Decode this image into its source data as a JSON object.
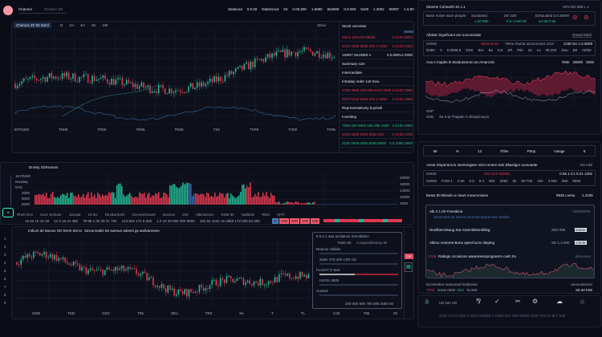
{
  "header": {
    "title": "Channel",
    "subtitle": "Position ZN",
    "tickers": [
      "Stakeout",
      "0.0.00",
      "DataScout",
      "63",
      "0.05.500",
      "1.5990",
      "8x6080",
      "0.0.060",
      "5x00",
      "1.300s",
      "00097",
      "1.0.80"
    ]
  },
  "main_chart": {
    "title": "Chemos Zh 92 Ssml",
    "tabs": [
      "D",
      "1H",
      "4H",
      "1D",
      "1W"
    ],
    "label": "Shlox",
    "x_labels": [
      "INTO200",
      "TN08",
      "TR00",
      "TR05",
      "TN05",
      "TX2",
      "TXP6",
      "TX00",
      "TX05"
    ],
    "y_labels": [
      "33",
      "32",
      "31",
      "30",
      "29",
      "28",
      "27",
      "26",
      "25",
      "24"
    ]
  },
  "order_list": {
    "title": "Stock overview",
    "rows": [
      {
        "text": "Mono 20XL50 bbbbb",
        "val": "0.0120.0800",
        "color": "red"
      },
      {
        "text": "2440 4460 8830 282 0-1250",
        "val": "0.0122.0450",
        "color": "red"
      },
      {
        "text": "1S0NT 8SUN8S s",
        "val": "0.0.00RL2 0000",
        "color": "w"
      },
      {
        "text": "Summary size",
        "val": "",
        "color": "w"
      },
      {
        "text": "Intermediate",
        "val": "",
        "color": "w"
      },
      {
        "text": "Intraday order 1x0 Ineu",
        "val": "",
        "color": "w"
      },
      {
        "text": "1780 3990 190 828 8100 2000",
        "val": "0.0103 2990",
        "color": "red"
      },
      {
        "text": "3570 8430 5850 200 0-2850",
        "val": "0.0102 2660",
        "color": "red"
      },
      {
        "text": "Representatively buy/sell",
        "val": "",
        "color": "w"
      },
      {
        "text": "Investing",
        "val": "",
        "color": "w"
      },
      {
        "text": "7050 330 5900 640 285 2100",
        "val": "0.0100 2050",
        "color": "grn"
      },
      {
        "text": "3030 8530 5500 3850 290",
        "val": "0.0100.2200",
        "color": "red"
      },
      {
        "text": "2100 0000 0000 0000 8000",
        "val": "0.0 1000 2900",
        "color": "grn"
      }
    ]
  },
  "right_panel": {
    "title": "Sineme Cohearth Ss z.1",
    "code": "SSY.DO 056 L 1",
    "stats": [
      {
        "label": "Base Active ware people",
        "value": ""
      },
      {
        "label": "Sustained",
        "value": "1.00 880"
      },
      {
        "label": "1W 1D0",
        "value": "0.0 4 930 90"
      },
      {
        "label": "Exhausted 0.0 25MH",
        "value": "44 58.0 90"
      }
    ],
    "section1": "Allobar Significant are sonominate",
    "section1_btn": "Grand Kleid",
    "table1": {
      "head": "SSNM",
      "badge": "Stkomnoss",
      "note": "Ttime rhumb asonomoins 4/13",
      "time": "1236  SU 1.6.5009",
      "cells": [
        "D08K",
        "0",
        "0.0008 8",
        "DSK",
        "8xx",
        "Bu",
        "8.9",
        "ZR",
        "Pile",
        "3s",
        "Lo",
        "08 200",
        "Dou",
        "B0",
        "02/50"
      ]
    },
    "section2": "Aoa A mapbe le Bradutonrom an Amarcolo",
    "section2_vals": [
      "Rtek",
      "20000",
      "2500"
    ],
    "chart_labels": [
      "SSP",
      "SSB"
    ],
    "footer_text": "Sa 3 ta Thapale 3 sbnapmoyos"
  },
  "toolbar": {
    "labels": [
      "Mt",
      "%",
      "13",
      "Fbhs",
      "Ptmp",
      "Hange",
      "8"
    ]
  },
  "right_lower": {
    "section": "Axeat Ztoperaroon otentongaes mist Anraes stok Bfaedgor ruonoante",
    "section_val": "GS A30",
    "table2": {
      "head": "SSMS",
      "badge": "S33 S2S 9200S",
      "time": "0.56 1 C1 8.31.1202",
      "cells": [
        "SSNM",
        "FUM-1",
        "2.50",
        "0.0",
        "8.4",
        "804",
        "2050",
        "8s",
        "80 T05",
        "15s",
        "3 650",
        "066",
        "8000"
      ]
    },
    "summary": "Beast 80 Blonds or dows mowcomises",
    "summary_vals": [
      "9935 Lsesa",
      "1.4335"
    ],
    "box": {
      "title": "Atk 3 1.5h Freeskina",
      "subtitle": "Boncomrs ar Iaoons  Sconsomparavoes  Trades",
      "tag": "200000000",
      "rows": [
        {
          "label": "Newfbeerskaug Sut Assemblesmbling",
          "v1": "SD4 93k",
          "v2": "52560"
        },
        {
          "label": "Altimo reverent Bune sperchurns sleping",
          "v1": "SD 1.4 800",
          "v2": "23538"
        }
      ],
      "chart_title": "Ratings occasions awarenessprogramm cash Ex",
      "chart_red": "ZVM",
      "chart_tag": "ahonoses"
    },
    "foot": {
      "left": "Exceseless seasoned hasbooks",
      "red": "T000",
      "mid": "SoNs 0000",
      "grn": "VDA",
      "g2": "Ta 500",
      "right_label": "aoooosssonn",
      "right_val": "S5.00 K05"
    },
    "bottom": {
      "label": "US NIA VD",
      "status": "2010 1 FC1 ED3 1 0G5 US0050 1 0.800 SCI 280 09036 2330 TO1 01 9LT S00"
    }
  },
  "volume": {
    "title": "Dnsisy Gbhsosam",
    "y_labels": [
      "18 RNSD",
      "Nasdaq",
      "5YD",
      "2000",
      "8000",
      "5000"
    ],
    "r_labels": [
      "20000",
      "18000",
      "14000",
      "10000",
      "1000"
    ],
    "ticker_labels": [
      "Rhett Dev",
      "Gure Selnaer",
      "Jamaat",
      "10.5U",
      "RezBarbash",
      "Gumeebmaste",
      "Bosnoe",
      "250",
      "Ultimatrans",
      "0485 90",
      "Natbilde",
      "Rbet",
      "SPIT"
    ],
    "ticker_vals": [
      "15 92 15 10 18",
      "12 8 18 24 480",
      "78 89 1 00 28 21 781",
      "123 834 174 8.500",
      "1.0 19 30 800 000 8000",
      "183 94 1234 15 2550 170 500 84 200"
    ],
    "chips": [
      "%",
      "V05",
      "S50",
      "178",
      "128"
    ]
  },
  "lower_chart": {
    "title": "Indium de Bwoos NG Brem Bnrcs",
    "subtitle": "Sinsonnable 60 avenue advent gs andvannees",
    "x_labels": [
      "2020",
      "TSD",
      "GDC",
      "T55",
      "0EU",
      "TR0",
      "8A",
      "T",
      "TL"
    ],
    "y_labels": [
      "1",
      "2",
      "3",
      "4",
      "5",
      "6",
      "7",
      "8",
      "9"
    ]
  },
  "overlay": {
    "title": "5 5 a 1 aas avolianos nenotlation",
    "head": [
      "TS55 S5",
      "Compositionesy de"
    ],
    "rows": [
      "Reduce cabide",
      "Safer 275 200 CR0 CE",
      "FLIGHT D B44",
      "HS0SI 4800",
      "Gusted"
    ],
    "bottom": "200 000 800 790 005 2000 00",
    "x": [
      "C20",
      "T05",
      "20"
    ],
    "btn": "GB"
  },
  "colors": {
    "bg": "#0b0d16",
    "panel": "#0d101b",
    "up": "#22b893",
    "down": "#e23750",
    "accent": "#ff9aa6"
  }
}
